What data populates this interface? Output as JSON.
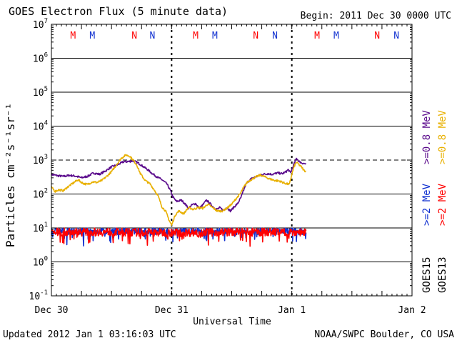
{
  "header": {
    "title": "GOES Electron Flux (5 minute data)",
    "begin": "Begin: 2011 Dec 30 0000 UTC"
  },
  "footer": {
    "updated": "Updated 2012 Jan  1 03:16:03 UTC",
    "credit": "NOAA/SWPC Boulder, CO USA"
  },
  "colors": {
    "red": "#ff0000",
    "blue": "#1030d0",
    "purple": "#5a0a8c",
    "gold": "#e8b000",
    "black": "#000000"
  },
  "chart_data": {
    "type": "line",
    "title": "GOES Electron Flux (5 minute data)",
    "xlabel": "Universal Time",
    "ylabel": "Particles cm⁻²s⁻¹sr⁻¹",
    "yscale": "log",
    "ylim_exp": [
      -1,
      7
    ],
    "xlim_days": [
      0,
      3
    ],
    "x_ticks": [
      {
        "day": 0,
        "label": "Dec 30"
      },
      {
        "day": 1,
        "label": "Dec 31"
      },
      {
        "day": 2,
        "label": "Jan 1"
      },
      {
        "day": 3,
        "label": "Jan 2"
      }
    ],
    "y_ticks": [
      {
        "exp": 7,
        "base": "10",
        "sup": "7"
      },
      {
        "exp": 6,
        "base": "10",
        "sup": "6"
      },
      {
        "exp": 5,
        "base": "10",
        "sup": "5"
      },
      {
        "exp": 4,
        "base": "10",
        "sup": "4"
      },
      {
        "exp": 3,
        "base": "10",
        "sup": "3"
      },
      {
        "exp": 2,
        "base": "10",
        "sup": "2"
      },
      {
        "exp": 1,
        "base": "10",
        "sup": "1"
      },
      {
        "exp": 0,
        "base": "10",
        "sup": "0"
      },
      {
        "exp": -1,
        "base": "10",
        "sup": "-1"
      }
    ],
    "reference_lines": [
      {
        "exp": 3,
        "style": "dashed"
      }
    ],
    "grid_lines_exp": [
      6,
      5,
      4,
      2,
      1,
      0
    ],
    "midnight_days": [
      1,
      2
    ],
    "markers": [
      {
        "day": 0.18,
        "label": "M",
        "color": "red"
      },
      {
        "day": 0.34,
        "label": "M",
        "color": "blue"
      },
      {
        "day": 0.69,
        "label": "N",
        "color": "red"
      },
      {
        "day": 0.84,
        "label": "N",
        "color": "blue"
      },
      {
        "day": 1.2,
        "label": "M",
        "color": "red"
      },
      {
        "day": 1.36,
        "label": "M",
        "color": "blue"
      },
      {
        "day": 1.7,
        "label": "N",
        "color": "red"
      },
      {
        "day": 1.86,
        "label": "N",
        "color": "blue"
      },
      {
        "day": 2.21,
        "label": "M",
        "color": "red"
      },
      {
        "day": 2.37,
        "label": "M",
        "color": "blue"
      },
      {
        "day": 2.71,
        "label": "N",
        "color": "red"
      },
      {
        "day": 2.87,
        "label": "N",
        "color": "blue"
      }
    ],
    "legend": [
      {
        "sat": "GOES15",
        "energy": ">=0.8 MeV",
        "color": "purple"
      },
      {
        "sat": "GOES13",
        "energy": ">=0.8 MeV",
        "color": "gold"
      },
      {
        "sat": "GOES15",
        "energy": ">=2 MeV",
        "color": "blue"
      },
      {
        "sat": "GOES13",
        "energy": ">=2 MeV",
        "color": "red"
      }
    ],
    "legend_sats": [
      "GOES15",
      "GOES13"
    ],
    "series": [
      {
        "name": "GOES15 >=0.8 MeV",
        "color": "purple",
        "noise": 0.03,
        "points": [
          [
            0.0,
            2.58
          ],
          [
            0.05,
            2.54
          ],
          [
            0.1,
            2.52
          ],
          [
            0.15,
            2.55
          ],
          [
            0.2,
            2.53
          ],
          [
            0.25,
            2.48
          ],
          [
            0.3,
            2.52
          ],
          [
            0.35,
            2.62
          ],
          [
            0.4,
            2.58
          ],
          [
            0.45,
            2.68
          ],
          [
            0.5,
            2.8
          ],
          [
            0.55,
            2.86
          ],
          [
            0.6,
            2.95
          ],
          [
            0.65,
            2.96
          ],
          [
            0.68,
            2.98
          ],
          [
            0.72,
            2.92
          ],
          [
            0.76,
            2.82
          ],
          [
            0.8,
            2.72
          ],
          [
            0.84,
            2.6
          ],
          [
            0.88,
            2.5
          ],
          [
            0.92,
            2.42
          ],
          [
            0.96,
            2.3
          ],
          [
            0.99,
            2.1
          ],
          [
            1.01,
            1.92
          ],
          [
            1.04,
            1.78
          ],
          [
            1.08,
            1.82
          ],
          [
            1.11,
            1.72
          ],
          [
            1.14,
            1.58
          ],
          [
            1.17,
            1.68
          ],
          [
            1.2,
            1.72
          ],
          [
            1.23,
            1.58
          ],
          [
            1.26,
            1.68
          ],
          [
            1.29,
            1.82
          ],
          [
            1.32,
            1.72
          ],
          [
            1.35,
            1.6
          ],
          [
            1.38,
            1.55
          ],
          [
            1.4,
            1.6
          ],
          [
            1.43,
            1.52
          ],
          [
            1.46,
            1.6
          ],
          [
            1.49,
            1.5
          ],
          [
            1.52,
            1.62
          ],
          [
            1.55,
            1.72
          ],
          [
            1.58,
            1.92
          ],
          [
            1.6,
            2.12
          ],
          [
            1.62,
            2.3
          ],
          [
            1.65,
            2.42
          ],
          [
            1.68,
            2.48
          ],
          [
            1.72,
            2.54
          ],
          [
            1.76,
            2.58
          ],
          [
            1.8,
            2.6
          ],
          [
            1.84,
            2.58
          ],
          [
            1.88,
            2.62
          ],
          [
            1.92,
            2.6
          ],
          [
            1.95,
            2.65
          ],
          [
            1.97,
            2.72
          ],
          [
            1.99,
            2.62
          ],
          [
            2.0,
            2.72
          ],
          [
            2.02,
            2.9
          ],
          [
            2.04,
            3.06
          ],
          [
            2.06,
            2.96
          ],
          [
            2.08,
            2.92
          ],
          [
            2.1,
            2.9
          ],
          [
            2.12,
            2.88
          ]
        ]
      },
      {
        "name": "GOES13 >=0.8 MeV",
        "color": "gold",
        "noise": 0.03,
        "points": [
          [
            0.0,
            2.2
          ],
          [
            0.03,
            2.08
          ],
          [
            0.06,
            2.12
          ],
          [
            0.1,
            2.1
          ],
          [
            0.14,
            2.22
          ],
          [
            0.18,
            2.32
          ],
          [
            0.22,
            2.42
          ],
          [
            0.26,
            2.32
          ],
          [
            0.3,
            2.28
          ],
          [
            0.34,
            2.36
          ],
          [
            0.38,
            2.34
          ],
          [
            0.42,
            2.4
          ],
          [
            0.46,
            2.52
          ],
          [
            0.5,
            2.66
          ],
          [
            0.54,
            2.85
          ],
          [
            0.58,
            3.05
          ],
          [
            0.62,
            3.15
          ],
          [
            0.65,
            3.12
          ],
          [
            0.68,
            3.0
          ],
          [
            0.71,
            2.86
          ],
          [
            0.74,
            2.6
          ],
          [
            0.78,
            2.4
          ],
          [
            0.82,
            2.3
          ],
          [
            0.86,
            2.1
          ],
          [
            0.89,
            1.92
          ],
          [
            0.92,
            1.62
          ],
          [
            0.95,
            1.5
          ],
          [
            0.98,
            1.22
          ],
          [
            1.0,
            1.08
          ],
          [
            1.03,
            1.38
          ],
          [
            1.06,
            1.5
          ],
          [
            1.1,
            1.42
          ],
          [
            1.14,
            1.6
          ],
          [
            1.18,
            1.55
          ],
          [
            1.22,
            1.6
          ],
          [
            1.26,
            1.58
          ],
          [
            1.3,
            1.7
          ],
          [
            1.34,
            1.6
          ],
          [
            1.38,
            1.5
          ],
          [
            1.42,
            1.5
          ],
          [
            1.46,
            1.58
          ],
          [
            1.5,
            1.7
          ],
          [
            1.54,
            1.88
          ],
          [
            1.57,
            2.0
          ],
          [
            1.6,
            2.2
          ],
          [
            1.63,
            2.35
          ],
          [
            1.66,
            2.42
          ],
          [
            1.7,
            2.5
          ],
          [
            1.74,
            2.56
          ],
          [
            1.78,
            2.5
          ],
          [
            1.82,
            2.44
          ],
          [
            1.86,
            2.4
          ],
          [
            1.9,
            2.38
          ],
          [
            1.94,
            2.32
          ],
          [
            1.98,
            2.28
          ],
          [
            2.0,
            2.58
          ],
          [
            2.02,
            2.82
          ],
          [
            2.04,
            2.94
          ],
          [
            2.06,
            2.86
          ],
          [
            2.08,
            2.8
          ],
          [
            2.1,
            2.7
          ],
          [
            2.12,
            2.66
          ]
        ]
      },
      {
        "name": "GOES15 >=2 MeV",
        "color": "blue",
        "noise": 0.1,
        "points": [
          [
            0.0,
            0.9
          ],
          [
            0.5,
            0.9
          ],
          [
            1.0,
            0.9
          ],
          [
            1.5,
            0.9
          ],
          [
            2.0,
            0.9
          ],
          [
            2.12,
            0.9
          ]
        ]
      },
      {
        "name": "GOES13 >=2 MeV",
        "color": "red",
        "noise": 0.12,
        "points": [
          [
            0.0,
            0.88
          ],
          [
            0.5,
            0.88
          ],
          [
            1.0,
            0.86
          ],
          [
            1.5,
            0.88
          ],
          [
            2.0,
            0.88
          ],
          [
            2.12,
            0.88
          ]
        ]
      }
    ]
  }
}
